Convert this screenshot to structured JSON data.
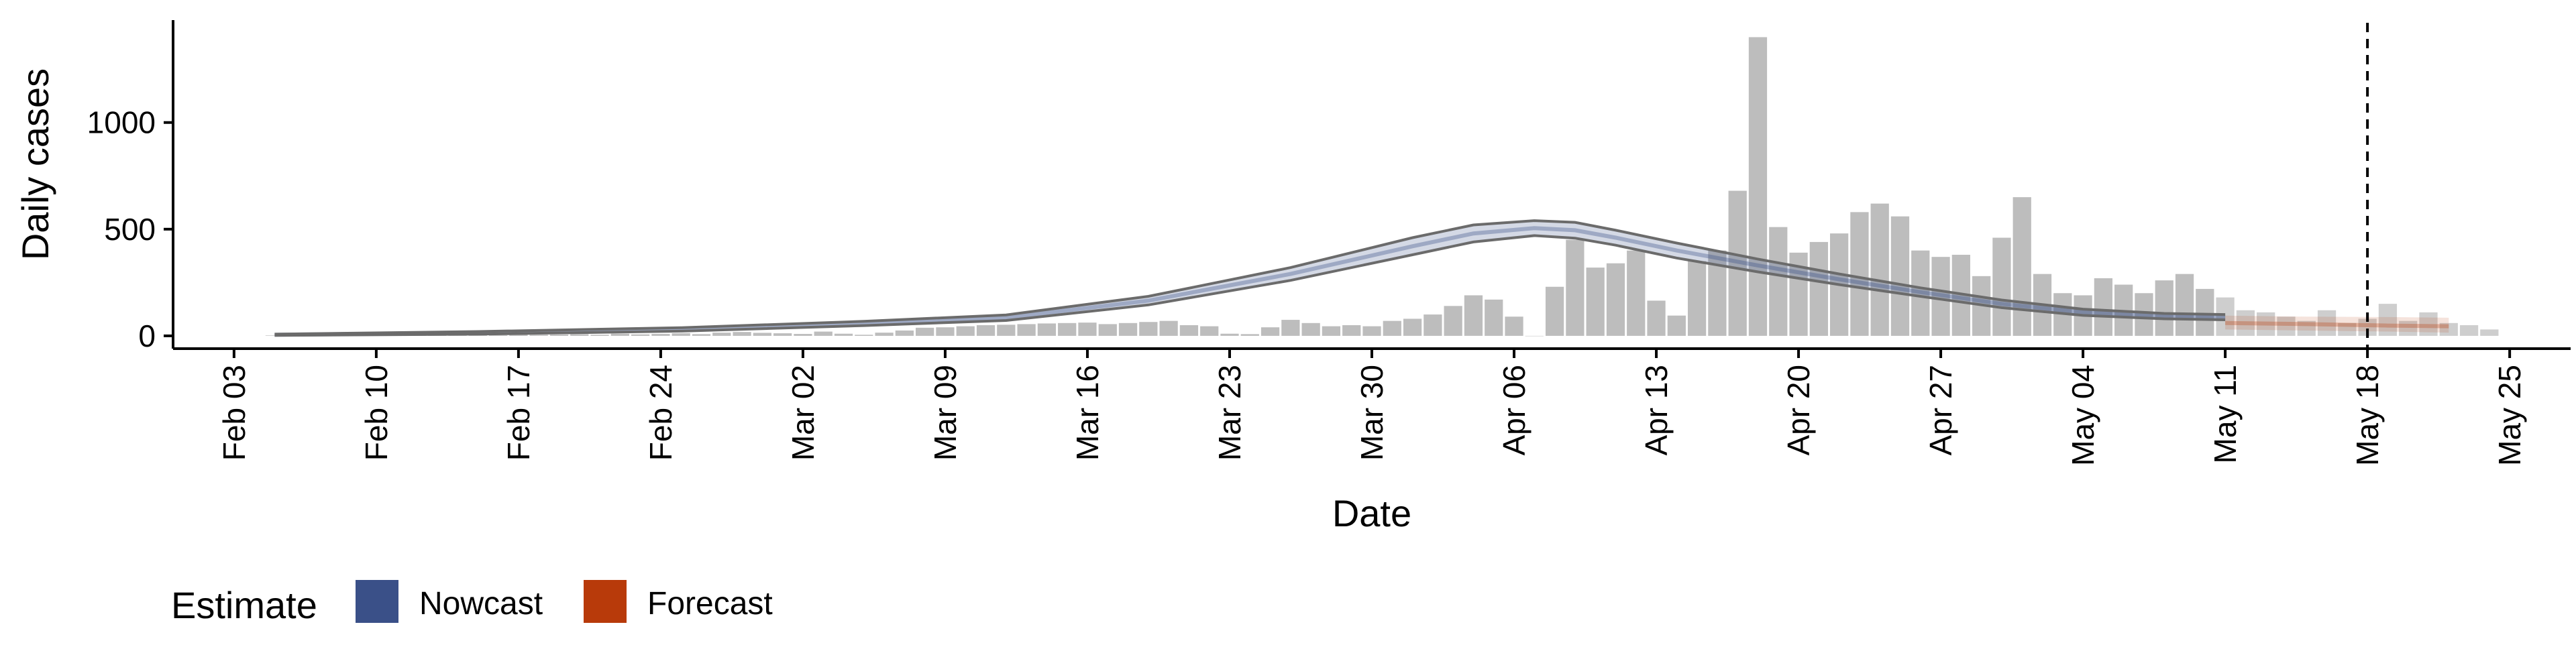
{
  "chart_data": {
    "type": "bar",
    "title": "",
    "xlabel": "Date",
    "ylabel": "Daily cases",
    "x_type": "date",
    "xlim": [
      "2020-01-31",
      "2020-05-28"
    ],
    "ylim": [
      -60,
      1480
    ],
    "y_ticks": [
      0,
      500,
      1000
    ],
    "y_tick_labels": [
      "0",
      "500",
      "1000"
    ],
    "x_ticks": [
      "2020-02-03",
      "2020-02-10",
      "2020-02-17",
      "2020-02-24",
      "2020-03-02",
      "2020-03-09",
      "2020-03-16",
      "2020-03-23",
      "2020-03-30",
      "2020-04-06",
      "2020-04-13",
      "2020-04-20",
      "2020-04-27",
      "2020-05-04",
      "2020-05-11",
      "2020-05-18",
      "2020-05-25"
    ],
    "x_tick_labels": [
      "Feb 03",
      "Feb 10",
      "Feb 17",
      "Feb 24",
      "Mar 02",
      "Mar 09",
      "Mar 16",
      "Mar 23",
      "Mar 30",
      "Apr 06",
      "Apr 13",
      "Apr 20",
      "Apr 27",
      "May 04",
      "May 11",
      "May 18",
      "May 25"
    ],
    "grid": false,
    "legend_position": "bottom-left",
    "vline_date": "2020-05-18",
    "colors": {
      "bars": "#bdbdbd",
      "nowcast": "#3a5088",
      "forecast": "#b83a0a",
      "lines": "#6b6b6b",
      "vline": "#000000"
    },
    "legend": {
      "title": "Estimate",
      "items": [
        {
          "label": "Nowcast",
          "color": "#3a5088"
        },
        {
          "label": "Forecast",
          "color": "#b83a0a"
        }
      ]
    },
    "bars": {
      "start_date": "2020-02-05",
      "values": [
        2,
        3,
        5,
        2,
        3,
        3,
        4,
        2,
        5,
        4,
        6,
        3,
        7,
        5,
        6,
        8,
        5,
        10,
        7,
        9,
        12,
        8,
        15,
        18,
        14,
        12,
        9,
        20,
        10,
        5,
        15,
        25,
        38,
        40,
        45,
        50,
        52,
        55,
        58,
        60,
        62,
        55,
        60,
        65,
        70,
        50,
        45,
        10,
        8,
        40,
        75,
        60,
        45,
        50,
        45,
        70,
        80,
        100,
        140,
        190,
        170,
        90,
        0,
        230,
        450,
        320,
        340,
        400,
        165,
        95,
        350,
        400,
        680,
        1400,
        510,
        390,
        440,
        480,
        580,
        620,
        560,
        400,
        370,
        380,
        280,
        460,
        650,
        290,
        200,
        190,
        270,
        240,
        200,
        260,
        290,
        220,
        180,
        120,
        110,
        90,
        70,
        120,
        60,
        80,
        150,
        70,
        110,
        60,
        50,
        30
      ],
      "highlight_fill_from": "2020-05-11"
    },
    "nowcast_band": {
      "dates": [
        "2020-02-05",
        "2020-02-15",
        "2020-02-25",
        "2020-03-05",
        "2020-03-12",
        "2020-03-19",
        "2020-03-26",
        "2020-04-01",
        "2020-04-04",
        "2020-04-07",
        "2020-04-09",
        "2020-04-11",
        "2020-04-14",
        "2020-04-18",
        "2020-04-22",
        "2020-04-26",
        "2020-04-30",
        "2020-05-04",
        "2020-05-08",
        "2020-05-11"
      ],
      "mid": [
        5,
        14,
        30,
        58,
        85,
        165,
        290,
        420,
        480,
        505,
        495,
        460,
        400,
        330,
        265,
        205,
        150,
        110,
        92,
        88
      ],
      "upper": [
        8,
        20,
        38,
        68,
        98,
        185,
        320,
        460,
        520,
        540,
        532,
        495,
        435,
        360,
        290,
        225,
        168,
        125,
        105,
        100
      ],
      "lower": [
        2,
        8,
        22,
        48,
        72,
        145,
        260,
        380,
        440,
        470,
        458,
        425,
        365,
        300,
        240,
        185,
        132,
        96,
        80,
        75
      ]
    },
    "forecast_band": {
      "dates": [
        "2020-05-11",
        "2020-05-15",
        "2020-05-19",
        "2020-05-22"
      ],
      "mid": [
        60,
        55,
        48,
        45
      ],
      "upper": [
        95,
        90,
        88,
        85
      ],
      "lower": [
        30,
        25,
        20,
        15
      ]
    }
  }
}
